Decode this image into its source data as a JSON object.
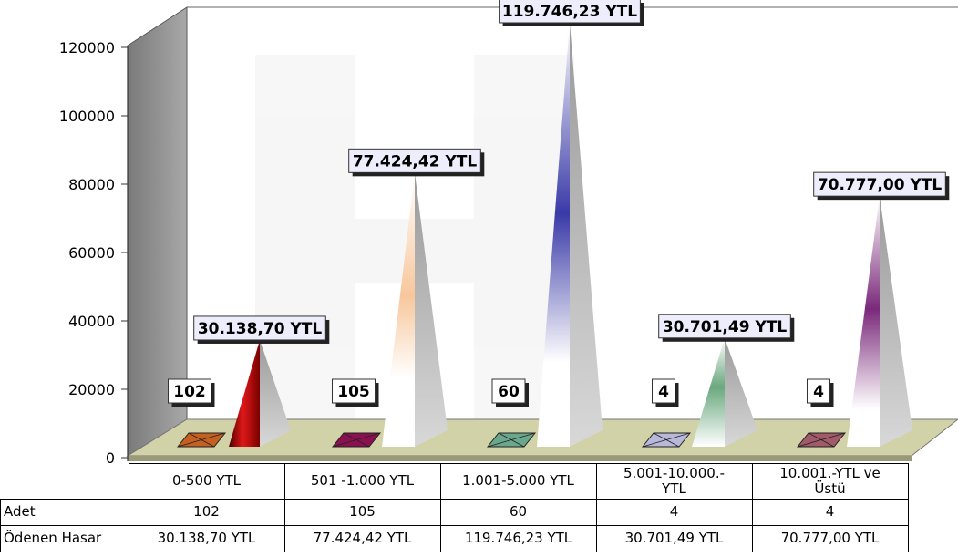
{
  "chart_data": {
    "type": "bar",
    "title": "",
    "xlabel": "",
    "ylabel": "",
    "ylim": [
      0,
      120000
    ],
    "yticks": [
      "0",
      "20000",
      "40000",
      "60000",
      "80000",
      "100000",
      "120000"
    ],
    "categories": [
      "0-500 YTL",
      "501 -1.000 YTL",
      "1.001-5.000 YTL",
      "5.001-10.000.-YTL",
      "10.001.-YTL ve Üstü"
    ],
    "series": [
      {
        "name": "Adet",
        "values": [
          102,
          105,
          60,
          4,
          4
        ],
        "labels": [
          "102",
          "105",
          "60",
          "4",
          "4"
        ]
      },
      {
        "name": "Ödenen Hasar",
        "values": [
          30138.7,
          77424.42,
          119746.23,
          30701.49,
          70777.0
        ],
        "labels": [
          "30.138,70 YTL",
          "77.424,42 YTL",
          "119.746,23 YTL",
          "30.701,49 YTL",
          "70.777,00 YTL"
        ]
      }
    ],
    "colors": [
      "#d42020",
      "#f4b58a",
      "#4040a8",
      "#8ec49e",
      "#8a3a8a"
    ],
    "legend": "table-bottom",
    "grid": false
  },
  "table": {
    "headers": [
      "0-500 YTL",
      "501 -1.000 YTL",
      "1.001-5.000 YTL",
      "5.001-10.000.-\nYTL",
      "10.001.-YTL ve\nÜstü"
    ],
    "rows": [
      {
        "label": "Adet",
        "cells": [
          "102",
          "105",
          "60",
          "4",
          "4"
        ]
      },
      {
        "label": "Ödenen Hasar",
        "cells": [
          "30.138,70 YTL",
          "77.424,42 YTL",
          "119.746,23 YTL",
          "30.701,49 YTL",
          "70.777,00 YTL"
        ]
      }
    ]
  }
}
